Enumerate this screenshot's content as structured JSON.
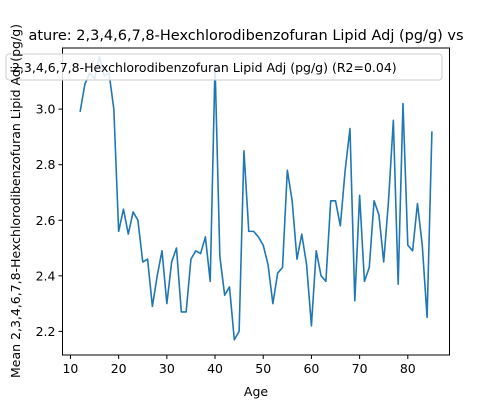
{
  "chart_data": {
    "type": "line",
    "title": "ature: 2,3,4,6,7,8-Hexchlorodibenzofuran Lipid Adj (pg/g) vs",
    "xlabel": "Age",
    "ylabel": "Mean 2,3,4,6,7,8-Hexchlorodibenzofuran Lipid Adj (pg/g)",
    "xlim": [
      8.35,
      88.65
    ],
    "ylim": [
      2.115,
      3.22
    ],
    "x_ticks": [
      10,
      20,
      30,
      40,
      50,
      60,
      70,
      80
    ],
    "y_ticks": [
      2.2,
      2.4,
      2.6,
      2.8,
      3.0
    ],
    "grid": false,
    "legend_position": "top",
    "series": [
      {
        "name": "2,3,4,6,7,8-Hexchlorodibenzofuran Lipid Adj (pg/g) (R2=0.04)",
        "color": "#1f77b4",
        "x": [
          12,
          13,
          14,
          15,
          16,
          17,
          18,
          19,
          20,
          21,
          22,
          23,
          24,
          25,
          26,
          27,
          28,
          29,
          30,
          31,
          32,
          33,
          34,
          35,
          36,
          37,
          38,
          39,
          40,
          41,
          42,
          43,
          44,
          45,
          46,
          47,
          48,
          49,
          50,
          51,
          52,
          53,
          54,
          55,
          56,
          57,
          58,
          59,
          60,
          61,
          62,
          63,
          64,
          65,
          66,
          67,
          68,
          69,
          70,
          71,
          72,
          73,
          74,
          75,
          76,
          77,
          78,
          79,
          80,
          81,
          82,
          83,
          84,
          85
        ],
        "y": [
          2.99,
          3.09,
          3.13,
          3.11,
          3.19,
          3.12,
          3.13,
          3.0,
          2.56,
          2.64,
          2.55,
          2.63,
          2.6,
          2.45,
          2.46,
          2.29,
          2.4,
          2.49,
          2.3,
          2.45,
          2.5,
          2.27,
          2.27,
          2.46,
          2.49,
          2.48,
          2.54,
          2.38,
          3.16,
          2.47,
          2.33,
          2.36,
          2.17,
          2.2,
          2.85,
          2.56,
          2.56,
          2.54,
          2.51,
          2.44,
          2.3,
          2.41,
          2.43,
          2.78,
          2.67,
          2.46,
          2.55,
          2.44,
          2.22,
          2.49,
          2.4,
          2.38,
          2.67,
          2.67,
          2.58,
          2.78,
          2.93,
          2.31,
          2.69,
          2.38,
          2.43,
          2.67,
          2.62,
          2.45,
          2.67,
          2.96,
          2.37,
          3.02,
          2.51,
          2.49,
          2.66,
          2.51,
          2.25,
          2.92
        ]
      }
    ]
  }
}
